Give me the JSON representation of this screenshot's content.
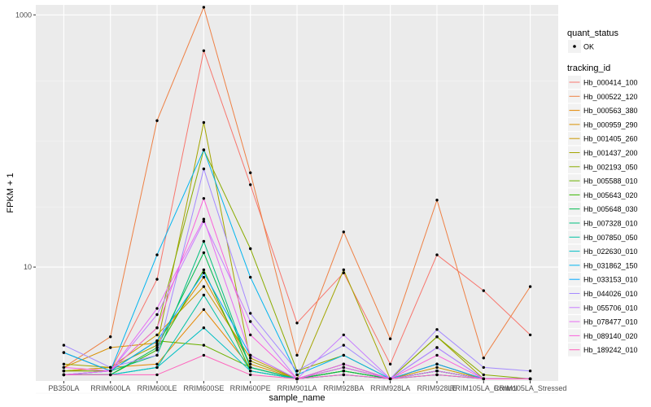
{
  "chart_data": {
    "type": "line",
    "xlabel": "sample_name",
    "ylabel": "FPKM + 1",
    "y_scale": "log10",
    "ylim": [
      1.25,
      1200
    ],
    "y_ticks": [
      10,
      1000
    ],
    "y_tick_labels": [
      "10",
      "1000"
    ],
    "y_minor_ticks": [
      1,
      100
    ],
    "grid": true,
    "legend_position": "right",
    "categories": [
      "PB350LA",
      "RRIM600LA",
      "RRIM600LE",
      "RRIM600SE",
      "RRIM600PE",
      "RRIM901LA",
      "RRIM928BA",
      "RRIM928LA",
      "RRIM928LE",
      "RRIM105LA_Control",
      "RRIM105LA_Stressed"
    ],
    "legend_quant": {
      "title": "quant_status",
      "items": [
        "OK"
      ]
    },
    "legend_tracking": {
      "title": "tracking_id"
    },
    "series": [
      {
        "name": "Hb_000414_100",
        "color": "#F8766D",
        "values": [
          1.5,
          1.5,
          8,
          520,
          45,
          3.6,
          9,
          1.7,
          12.5,
          6.5,
          2.9
        ]
      },
      {
        "name": "Hb_000522_120",
        "color": "#EE8044",
        "values": [
          1.6,
          2.8,
          145,
          1150,
          56,
          2.0,
          19,
          2.7,
          34,
          1.9,
          7.0
        ]
      },
      {
        "name": "Hb_000563_380",
        "color": "#E58700",
        "values": [
          1.5,
          1.6,
          1.7,
          4.6,
          1.6,
          1.3,
          1.5,
          1.3,
          1.7,
          1.3,
          1.3
        ]
      },
      {
        "name": "Hb_000959_290",
        "color": "#D89000",
        "values": [
          1.6,
          2.3,
          2.5,
          8.3,
          1.7,
          1.3,
          1.7,
          1.3,
          1.7,
          1.3,
          1.3
        ]
      },
      {
        "name": "Hb_001405_260",
        "color": "#C99800",
        "values": [
          1.5,
          1.6,
          2.9,
          7.0,
          1.9,
          1.3,
          1.6,
          1.3,
          1.6,
          1.3,
          1.3
        ]
      },
      {
        "name": "Hb_001437_200",
        "color": "#A3A500",
        "values": [
          1.7,
          1.6,
          2.4,
          140,
          1.8,
          1.3,
          9.5,
          1.3,
          2.8,
          1.3,
          1.3
        ]
      },
      {
        "name": "Hb_002193_050",
        "color": "#8AAB00",
        "values": [
          2.1,
          1.5,
          3.3,
          85,
          14,
          1.5,
          2.0,
          1.3,
          2.8,
          1.4,
          1.3
        ]
      },
      {
        "name": "Hb_005588_010",
        "color": "#6BB100",
        "values": [
          1.5,
          1.5,
          2.6,
          2.4,
          1.6,
          1.3,
          1.5,
          1.3,
          1.5,
          1.3,
          1.3
        ]
      },
      {
        "name": "Hb_005643_020",
        "color": "#39B600",
        "values": [
          1.4,
          1.4,
          2.2,
          9.5,
          1.5,
          1.3,
          1.5,
          1.3,
          1.5,
          1.3,
          1.3
        ]
      },
      {
        "name": "Hb_005648_030",
        "color": "#00BB4E",
        "values": [
          1.4,
          1.4,
          2.3,
          13,
          1.6,
          1.3,
          1.5,
          1.3,
          1.5,
          1.3,
          1.3
        ]
      },
      {
        "name": "Hb_007328_010",
        "color": "#00BF7D",
        "values": [
          1.4,
          1.5,
          2.0,
          16,
          1.6,
          1.3,
          1.6,
          1.3,
          1.5,
          1.3,
          1.3
        ]
      },
      {
        "name": "Hb_007850_050",
        "color": "#00C1A3",
        "values": [
          1.4,
          1.4,
          1.6,
          6.0,
          1.5,
          1.3,
          1.4,
          1.3,
          1.4,
          1.3,
          1.3
        ]
      },
      {
        "name": "Hb_022630_010",
        "color": "#00BFC4",
        "values": [
          1.4,
          1.4,
          1.6,
          3.3,
          1.5,
          1.3,
          1.4,
          1.3,
          1.4,
          1.3,
          1.3
        ]
      },
      {
        "name": "Hb_031862_150",
        "color": "#00B4EF",
        "values": [
          1.4,
          1.5,
          12.5,
          85,
          8.3,
          1.4,
          2.0,
          1.3,
          2.3,
          1.3,
          1.3
        ]
      },
      {
        "name": "Hb_033153_010",
        "color": "#00A9FF",
        "values": [
          2.1,
          1.5,
          2.6,
          9.0,
          2.0,
          1.3,
          1.7,
          1.3,
          1.7,
          1.3,
          1.3
        ]
      },
      {
        "name": "Hb_044026_010",
        "color": "#A58AFF",
        "values": [
          2.4,
          1.6,
          2.0,
          60,
          4.3,
          1.5,
          2.4,
          1.3,
          3.2,
          1.6,
          1.5
        ]
      },
      {
        "name": "Hb_055706_010",
        "color": "#C77CFF",
        "values": [
          1.4,
          1.5,
          4.2,
          23,
          3.7,
          1.3,
          2.9,
          1.3,
          2.3,
          1.3,
          1.3
        ]
      },
      {
        "name": "Hb_078477_010",
        "color": "#E76BF3",
        "values": [
          1.4,
          1.5,
          4.7,
          24,
          2.0,
          1.3,
          1.6,
          1.3,
          1.5,
          1.3,
          1.3
        ]
      },
      {
        "name": "Hb_089140_020",
        "color": "#FA62DB",
        "values": [
          1.6,
          1.5,
          3.3,
          35,
          2.9,
          1.3,
          1.7,
          1.3,
          2.0,
          1.3,
          1.3
        ]
      },
      {
        "name": "Hb_189242_010",
        "color": "#FF62BC",
        "values": [
          1.4,
          1.4,
          1.4,
          2.0,
          1.4,
          1.3,
          1.4,
          1.3,
          1.4,
          1.3,
          1.3
        ]
      }
    ]
  }
}
